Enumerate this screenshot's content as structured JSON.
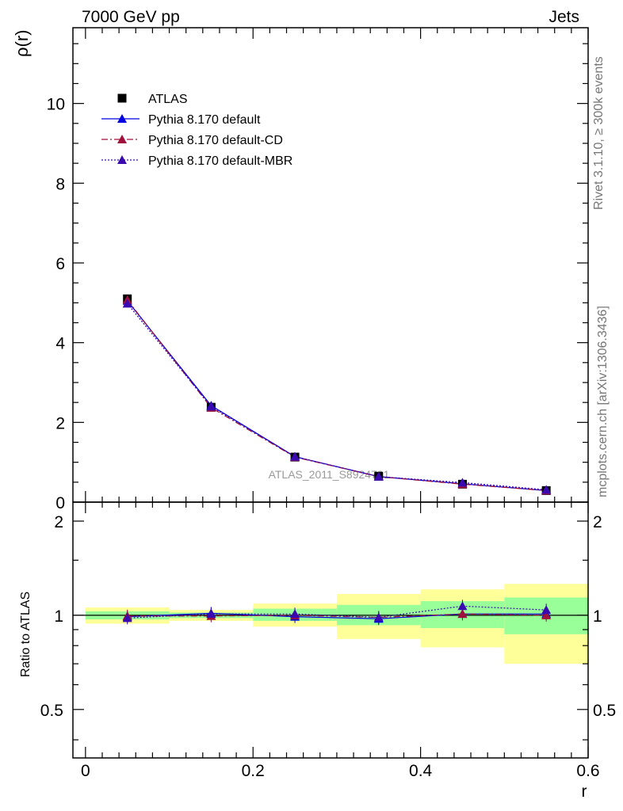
{
  "header": {
    "left": "7000 GeV pp",
    "right": "Jets"
  },
  "side_labels": {
    "rivet": "Rivet 3.1.10, ≥ 300k events",
    "source": "mcplots.cern.ch [arXiv:1306.3436]"
  },
  "watermark": "ATLAS_2011_S8924791",
  "chart_data": [
    {
      "type": "line",
      "panel": "main",
      "ylabel": "ρ(r)",
      "xlim": [
        -0.015,
        0.6
      ],
      "ylim": [
        0,
        11.9
      ],
      "yticks": [
        0,
        2,
        4,
        6,
        8,
        10
      ],
      "ytick_labels": [
        "0",
        "2",
        "4",
        "6",
        "8",
        "10"
      ],
      "legend_position": "top-left",
      "series": [
        {
          "name": "ATLAS",
          "color": "#000000",
          "marker": "square",
          "x": [
            0.05,
            0.15,
            0.25,
            0.35,
            0.45,
            0.55
          ],
          "y": [
            5.1,
            2.38,
            1.13,
            0.65,
            0.45,
            0.29
          ]
        },
        {
          "name": "Pythia 8.170 default",
          "color": "#0000e0",
          "marker": "triangle",
          "dash": "solid",
          "x": [
            0.05,
            0.15,
            0.25,
            0.35,
            0.45,
            0.55
          ],
          "y": [
            5.05,
            2.42,
            1.14,
            0.64,
            0.46,
            0.29
          ]
        },
        {
          "name": "Pythia 8.170 default-CD",
          "color": "#a0103c",
          "marker": "triangle",
          "dash": "dashdot",
          "x": [
            0.05,
            0.15,
            0.25,
            0.35,
            0.45,
            0.55
          ],
          "y": [
            5.07,
            2.37,
            1.13,
            0.64,
            0.45,
            0.29
          ]
        },
        {
          "name": "Pythia 8.170 default-MBR",
          "color": "#3a0ab0",
          "marker": "triangle",
          "dash": "dotted",
          "x": [
            0.05,
            0.15,
            0.25,
            0.35,
            0.45,
            0.55
          ],
          "y": [
            4.98,
            2.4,
            1.14,
            0.64,
            0.49,
            0.31
          ]
        }
      ]
    },
    {
      "type": "line",
      "panel": "ratio",
      "xlabel": "r",
      "ylabel": "Ratio to ATLAS",
      "xlim": [
        -0.015,
        0.6
      ],
      "ylim": [
        0.35,
        2.3
      ],
      "xticks": [
        0,
        0.2,
        0.4,
        0.6
      ],
      "xtick_labels": [
        "0",
        "0.2",
        "0.4",
        "0.6"
      ],
      "yticks": [
        0.5,
        1,
        2
      ],
      "ytick_labels": [
        "0.5",
        "1",
        "2"
      ],
      "bands": {
        "bin_edges": [
          0,
          0.1,
          0.2,
          0.3,
          0.4,
          0.5,
          0.6
        ],
        "inner": [
          [
            0.97,
            1.03
          ],
          [
            0.98,
            1.02
          ],
          [
            0.96,
            1.05
          ],
          [
            0.93,
            1.08
          ],
          [
            0.91,
            1.11
          ],
          [
            0.87,
            1.14
          ]
        ],
        "outer": [
          [
            0.94,
            1.06
          ],
          [
            0.96,
            1.04
          ],
          [
            0.92,
            1.09
          ],
          [
            0.84,
            1.17
          ],
          [
            0.79,
            1.21
          ],
          [
            0.7,
            1.26
          ]
        ],
        "inner_color": "#99ff99",
        "outer_color": "#ffff99"
      },
      "series": [
        {
          "name": "Pythia 8.170 default",
          "color": "#0000e0",
          "dash": "solid",
          "x": [
            0.05,
            0.15,
            0.25,
            0.35,
            0.45,
            0.55
          ],
          "y": [
            0.99,
            1.015,
            0.99,
            0.975,
            1.01,
            1.01
          ]
        },
        {
          "name": "Pythia 8.170 default-CD",
          "color": "#a0103c",
          "dash": "dashdot",
          "x": [
            0.05,
            0.15,
            0.25,
            0.35,
            0.45,
            0.55
          ],
          "y": [
            0.995,
            0.995,
            1.0,
            0.985,
            1.01,
            1.0
          ]
        },
        {
          "name": "Pythia 8.170 default-MBR",
          "color": "#3a0ab0",
          "dash": "dotted",
          "x": [
            0.05,
            0.15,
            0.25,
            0.35,
            0.45,
            0.55
          ],
          "y": [
            0.98,
            1.01,
            1.01,
            0.985,
            1.07,
            1.04
          ]
        }
      ]
    }
  ]
}
